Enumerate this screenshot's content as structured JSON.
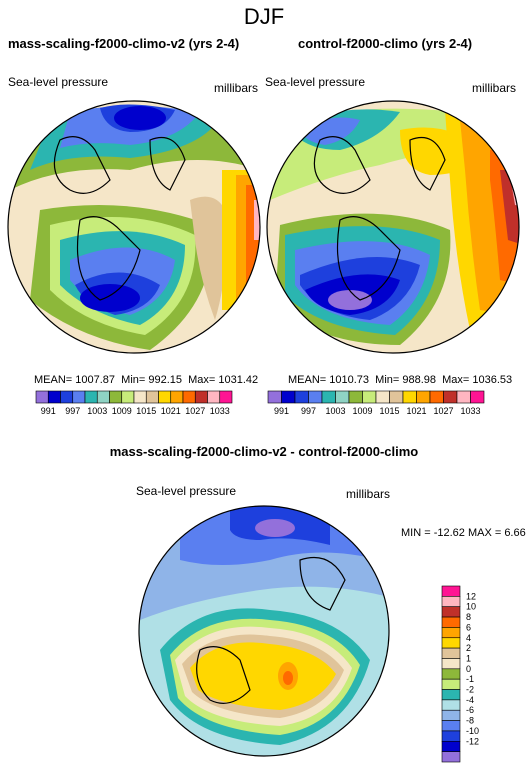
{
  "title": "DJF",
  "panels": [
    {
      "title": "mass-scaling-f2000-climo-v2 (yrs 2-4)",
      "variable": "Sea-level pressure",
      "units": "millibars",
      "stats": {
        "mean": "MEAN= 1007.87",
        "min": "Min= 992.15",
        "max": "Max= 1031.42"
      }
    },
    {
      "title": "control-f2000-climo (yrs 2-4)",
      "variable": "Sea-level pressure",
      "units": "millibars",
      "stats": {
        "mean": "MEAN= 1010.73",
        "min": "Min= 988.98",
        "max": "Max= 1036.53"
      }
    },
    {
      "title": "mass-scaling-f2000-climo-v2 - control-f2000-climo",
      "variable": "Sea-level pressure",
      "units": "millibars",
      "stats": {
        "minmax": "MIN = -12.62 MAX =  6.66"
      }
    }
  ],
  "colorbar_abs": {
    "colors": [
      "#9370db",
      "#0000cd",
      "#1e40dd",
      "#5a7ff0",
      "#2bb5b0",
      "#8fd3c4",
      "#8db83a",
      "#c7ec7a",
      "#f5e6c8",
      "#e0c49a",
      "#ffd700",
      "#ffa500",
      "#ff6a00",
      "#c0302a",
      "#ffb6c1",
      "#ff1493"
    ],
    "labels": [
      "991",
      "997",
      "1003",
      "1009",
      "1015",
      "1021",
      "1027",
      "1033"
    ]
  },
  "colorbar_diff": {
    "colors": [
      "#9370db",
      "#0000cd",
      "#1e40dd",
      "#5a7ff0",
      "#8fb4e8",
      "#b0e0e6",
      "#2bb5b0",
      "#c7ec7a",
      "#8db83a",
      "#f5e6c8",
      "#e0c49a",
      "#ffd700",
      "#ffa500",
      "#ff6a00",
      "#c0302a",
      "#ffb6c1",
      "#ff1493"
    ],
    "labels": [
      "12",
      "10",
      "8",
      "6",
      "4",
      "2",
      "1",
      "0",
      "-1",
      "-2",
      "-4",
      "-6",
      "-8",
      "-10",
      "-12"
    ]
  },
  "map_colors": {
    "beige": "#f5e6c8",
    "tan": "#e0c49a",
    "blue": "#0000cd",
    "blue2": "#1e40dd",
    "blue3": "#5a7ff0",
    "teal": "#2bb5b0",
    "lgreen": "#c7ec7a",
    "green": "#8db83a",
    "yellow": "#ffd700",
    "orange": "#ffa500",
    "dorange": "#ff6a00",
    "red": "#c0302a",
    "pink": "#ffb6c1",
    "lavender": "#9370db",
    "lblue": "#b0e0e6",
    "pblue": "#8fb4e8"
  }
}
